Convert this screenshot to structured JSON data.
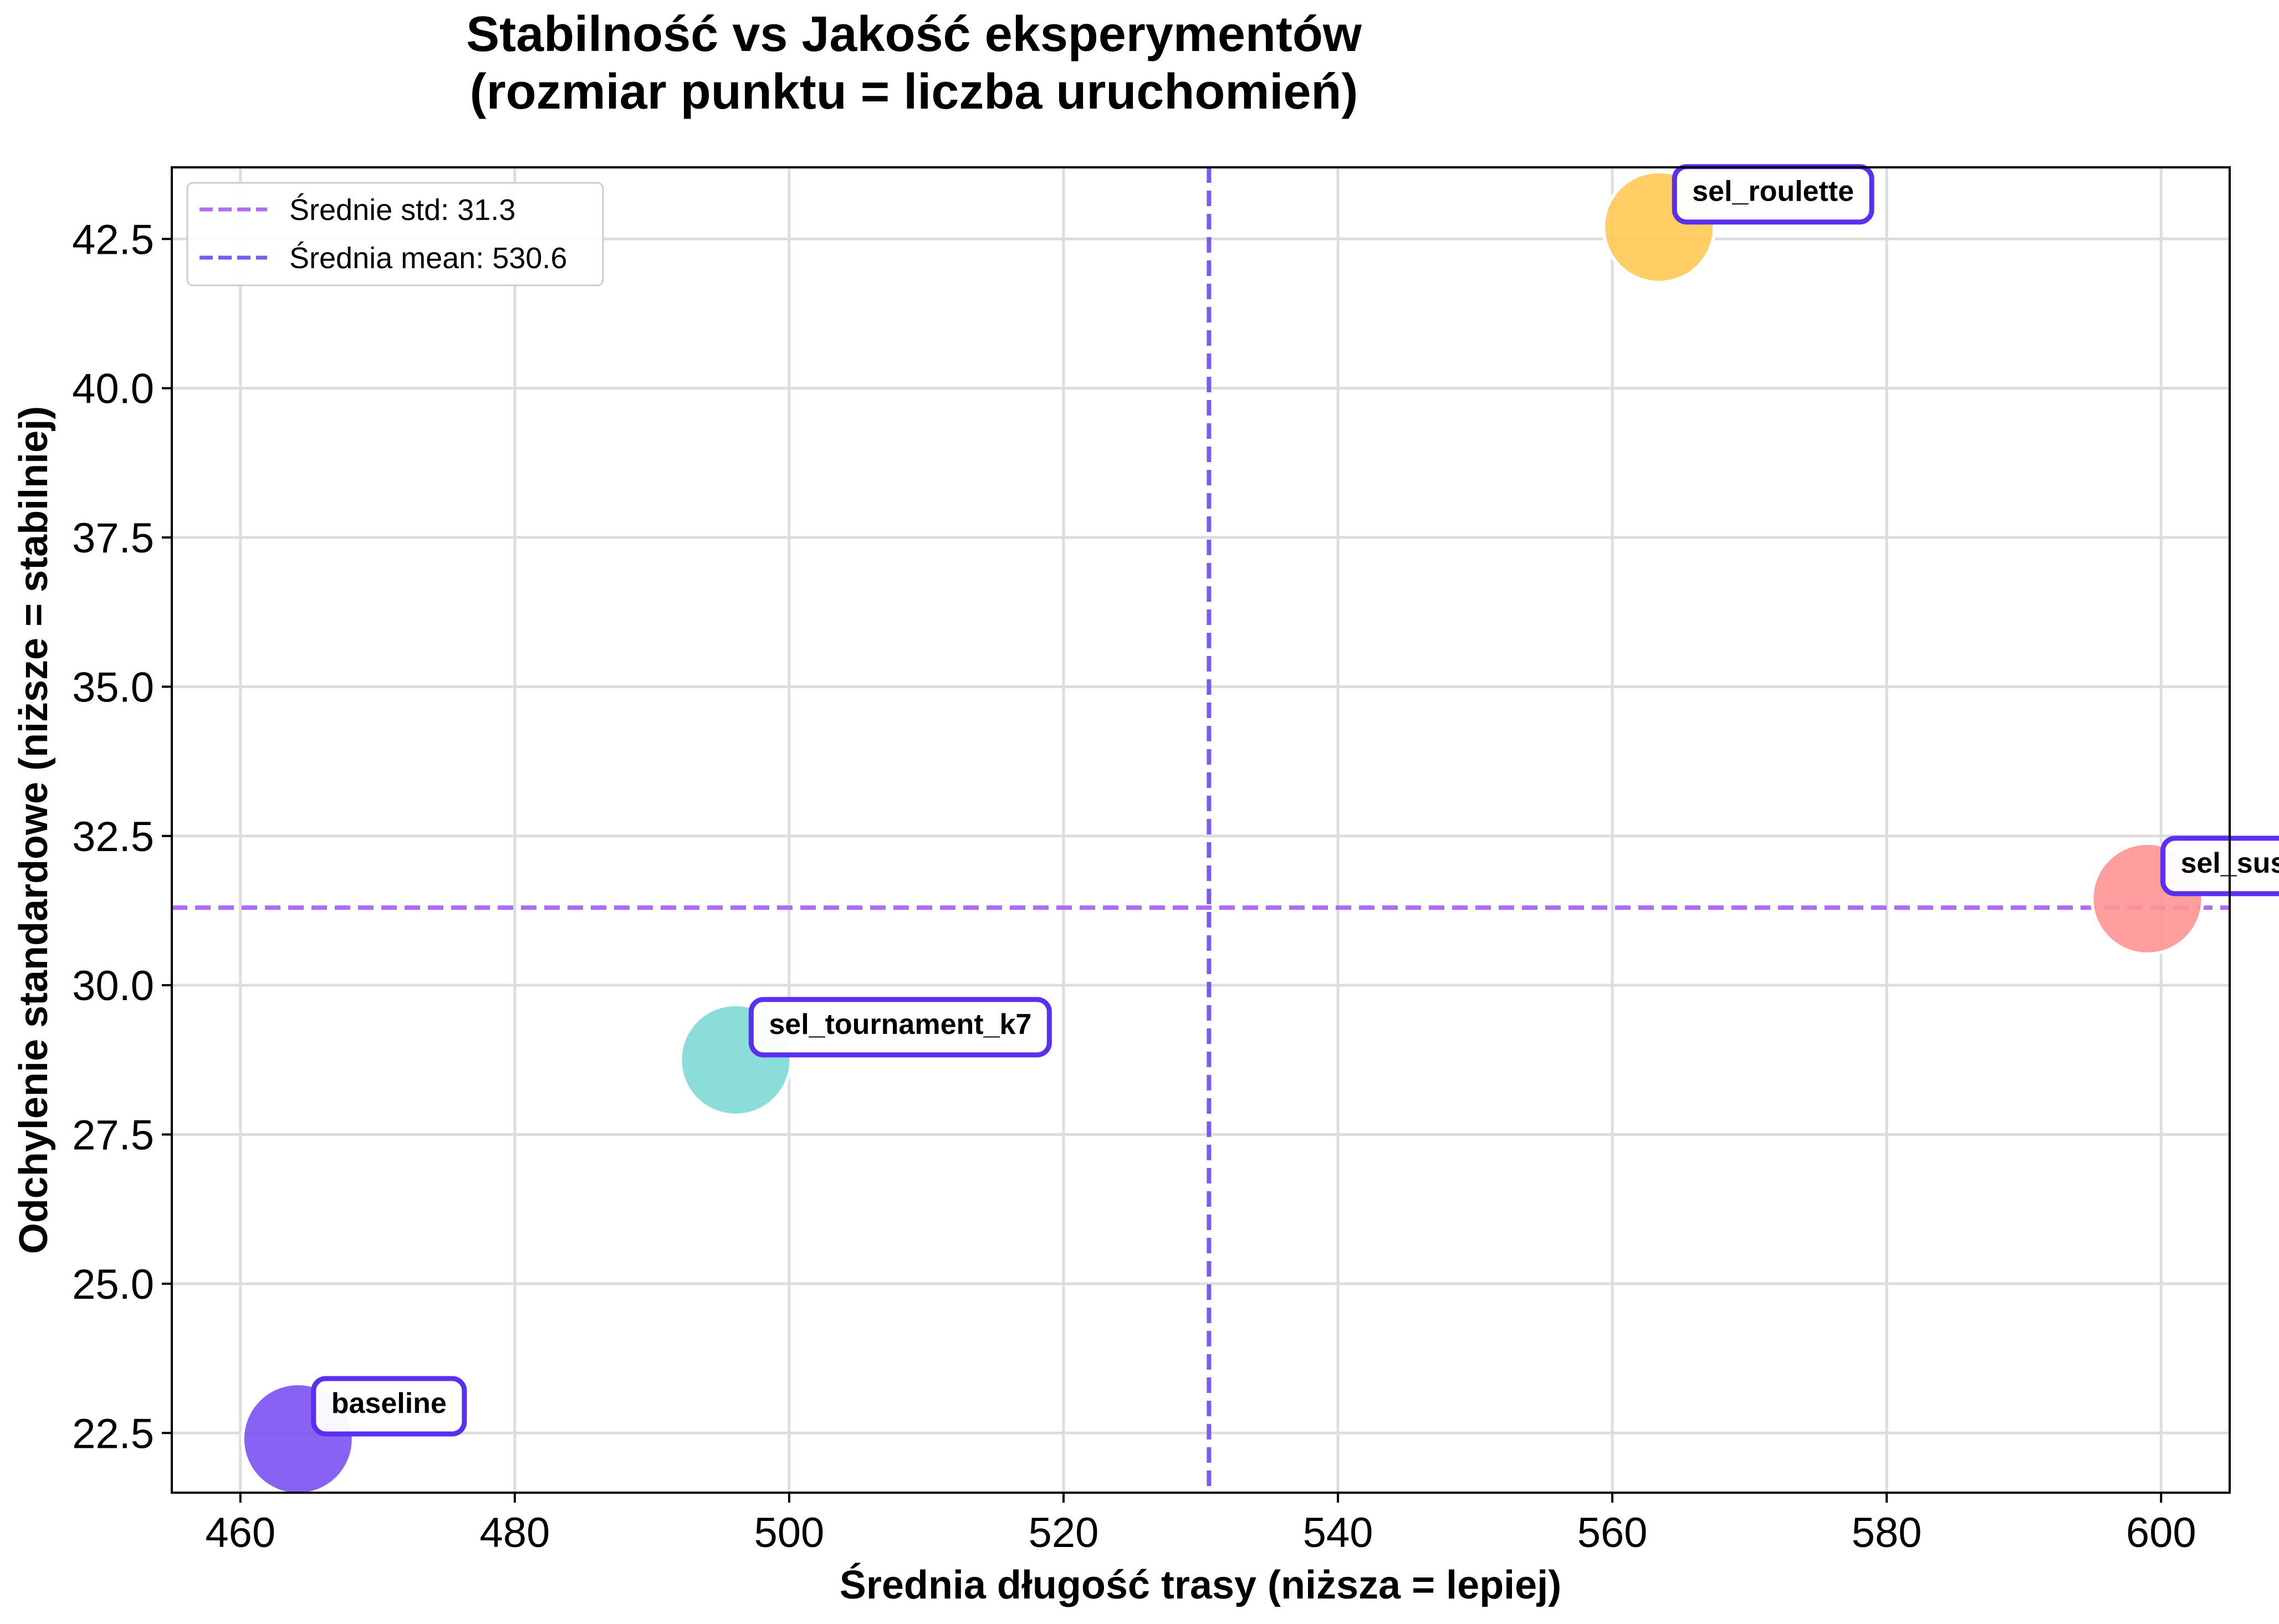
{
  "chart_data": {
    "type": "scatter",
    "title": [
      "Stabilność vs Jakość eksperymentów",
      "(rozmiar punktu = liczba uruchomień)"
    ],
    "xlabel": "Średnia długość trasy (niższa = lepiej)",
    "ylabel": "Odchylenie standardowe (niższe = stabilniej)",
    "xlim": [
      455,
      605
    ],
    "ylim": [
      21.5,
      43.7
    ],
    "xticks": [
      460,
      480,
      500,
      520,
      540,
      560,
      580,
      600
    ],
    "yticks": [
      22.5,
      25.0,
      27.5,
      30.0,
      32.5,
      35.0,
      37.5,
      40.0,
      42.5
    ],
    "ytick_labels": [
      "22.5",
      "25.0",
      "27.5",
      "30.0",
      "32.5",
      "35.0",
      "37.5",
      "40.0",
      "42.5"
    ],
    "grid": true,
    "legend_position": "top-left",
    "points": [
      {
        "label": "baseline",
        "x": 464.2,
        "y": 22.4,
        "color": "#7b52f2"
      },
      {
        "label": "sel_tournament_k7",
        "x": 496.1,
        "y": 28.75,
        "color": "#7dd9d4"
      },
      {
        "label": "sel_roulette",
        "x": 563.4,
        "y": 42.7,
        "color": "#ffca55"
      },
      {
        "label": "sel_sus",
        "x": 599.0,
        "y": 31.45,
        "color": "#ff9494"
      }
    ],
    "reference_lines": [
      {
        "orientation": "horizontal",
        "value": 31.3,
        "legend": "Średnie std: 31.3",
        "color": "#b06cf0"
      },
      {
        "orientation": "vertical",
        "value": 530.6,
        "legend": "Średnia mean: 530.6",
        "color": "#7a5af0"
      }
    ],
    "label_box_border_color": "#5b2ff0"
  }
}
